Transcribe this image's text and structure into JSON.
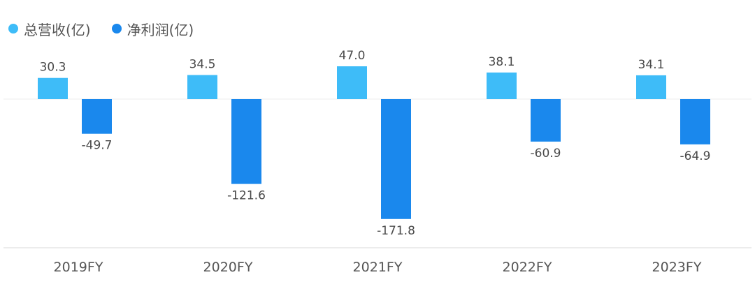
{
  "legend": [
    {
      "label": "总营收(亿)",
      "color": "#3ebcf8"
    },
    {
      "label": "净利润(亿)",
      "color": "#1a88ed"
    }
  ],
  "chart_data": {
    "type": "bar",
    "categories": [
      "2019FY",
      "2020FY",
      "2021FY",
      "2022FY",
      "2023FY"
    ],
    "series": [
      {
        "name": "总营收(亿)",
        "color": "#3ebcf8",
        "values": [
          30.3,
          34.5,
          47.0,
          38.1,
          34.1
        ],
        "labels": [
          "30.3",
          "34.5",
          "47.0",
          "38.1",
          "34.1"
        ]
      },
      {
        "name": "净利润(亿)",
        "color": "#1a88ed",
        "values": [
          -49.7,
          -121.6,
          -171.8,
          -60.9,
          -64.9
        ],
        "labels": [
          "-49.7",
          "-121.6",
          "-171.8",
          "-60.9",
          "-64.9"
        ]
      }
    ],
    "grid": false,
    "legend_position": "top-left"
  }
}
